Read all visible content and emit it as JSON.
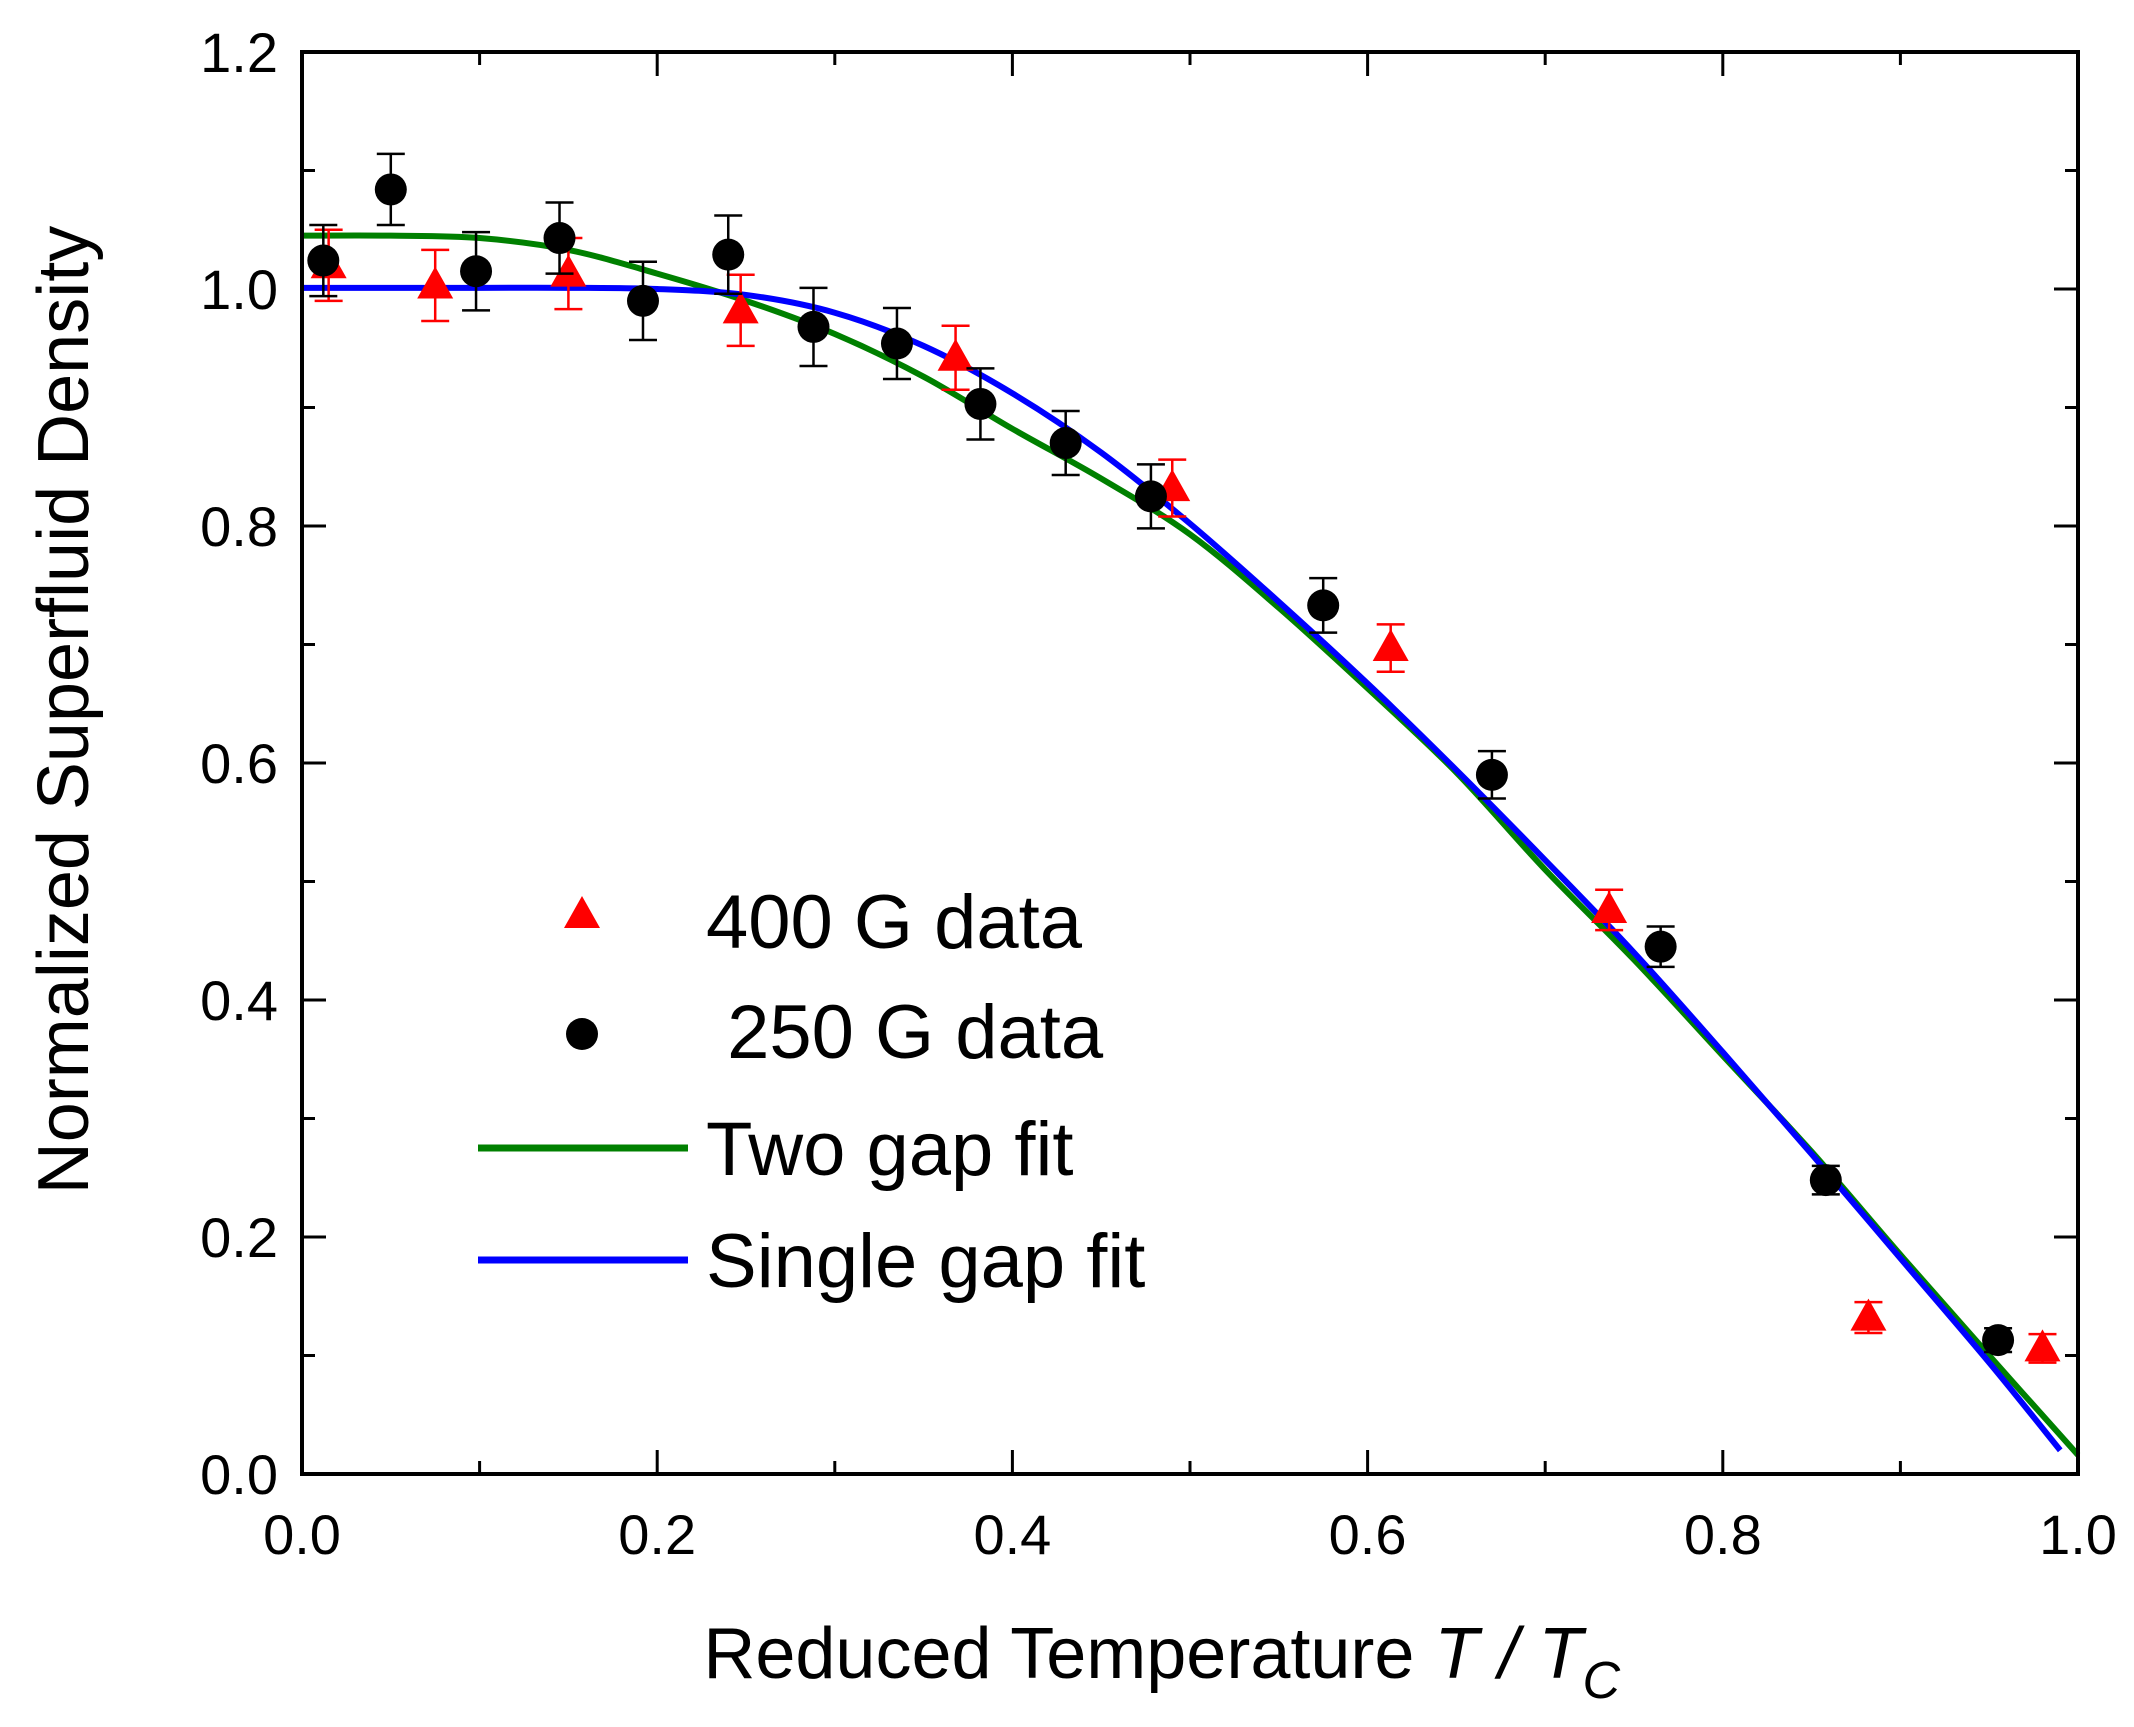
{
  "chart_data": {
    "type": "scatter",
    "xlabel": "Reduced Temperature",
    "xlabel_var_num": "T",
    "xlabel_sep": " / ",
    "xlabel_var_den": "T",
    "xlabel_sub": "C",
    "ylabel": "Normalized Superfluid Density",
    "xlim": [
      0.0,
      1.0
    ],
    "ylim": [
      0.0,
      1.2
    ],
    "xticks": [
      "0.0",
      "0.2",
      "0.4",
      "0.6",
      "0.8",
      "1.0"
    ],
    "yticks": [
      "0.0",
      "0.2",
      "0.4",
      "0.6",
      "0.8",
      "1.0",
      "1.2"
    ],
    "legend_position": "center-left",
    "series": [
      {
        "name": "400 G data",
        "kind": "scatter",
        "marker": "triangle",
        "color": "#ff0000",
        "points": [
          {
            "x": 0.015,
            "y": 1.02,
            "err": 0.03
          },
          {
            "x": 0.075,
            "y": 1.003,
            "err": 0.03
          },
          {
            "x": 0.15,
            "y": 1.013,
            "err": 0.03
          },
          {
            "x": 0.247,
            "y": 0.982,
            "err": 0.03
          },
          {
            "x": 0.368,
            "y": 0.942,
            "err": 0.027
          },
          {
            "x": 0.49,
            "y": 0.832,
            "err": 0.024
          },
          {
            "x": 0.613,
            "y": 0.697,
            "err": 0.02
          },
          {
            "x": 0.736,
            "y": 0.476,
            "err": 0.017
          },
          {
            "x": 0.882,
            "y": 0.132,
            "err": 0.013
          },
          {
            "x": 0.98,
            "y": 0.106,
            "err": 0.012
          }
        ]
      },
      {
        "name": " 250 G data",
        "kind": "scatter",
        "marker": "circle",
        "color": "#000000",
        "points": [
          {
            "x": 0.012,
            "y": 1.024,
            "err": 0.03
          },
          {
            "x": 0.05,
            "y": 1.084,
            "err": 0.03
          },
          {
            "x": 0.098,
            "y": 1.015,
            "err": 0.033
          },
          {
            "x": 0.145,
            "y": 1.043,
            "err": 0.03
          },
          {
            "x": 0.192,
            "y": 0.99,
            "err": 0.033
          },
          {
            "x": 0.24,
            "y": 1.029,
            "err": 0.033
          },
          {
            "x": 0.288,
            "y": 0.968,
            "err": 0.033
          },
          {
            "x": 0.335,
            "y": 0.954,
            "err": 0.03
          },
          {
            "x": 0.382,
            "y": 0.903,
            "err": 0.03
          },
          {
            "x": 0.43,
            "y": 0.87,
            "err": 0.027
          },
          {
            "x": 0.478,
            "y": 0.825,
            "err": 0.027
          },
          {
            "x": 0.575,
            "y": 0.733,
            "err": 0.023
          },
          {
            "x": 0.67,
            "y": 0.59,
            "err": 0.02
          },
          {
            "x": 0.765,
            "y": 0.445,
            "err": 0.017
          },
          {
            "x": 0.858,
            "y": 0.248,
            "err": 0.012
          },
          {
            "x": 0.955,
            "y": 0.113,
            "err": 0.01
          }
        ]
      },
      {
        "name": "Two gap fit",
        "kind": "line",
        "color": "#008000",
        "x": [
          0.0,
          0.05,
          0.1,
          0.15,
          0.2,
          0.25,
          0.3,
          0.35,
          0.4,
          0.45,
          0.5,
          0.55,
          0.6,
          0.65,
          0.7,
          0.75,
          0.8,
          0.85,
          0.9,
          0.95,
          1.0
        ],
        "y": [
          1.045,
          1.045,
          1.043,
          1.033,
          1.013,
          0.99,
          0.962,
          0.926,
          0.882,
          0.84,
          0.793,
          0.731,
          0.663,
          0.592,
          0.51,
          0.434,
          0.353,
          0.272,
          0.185,
          0.1,
          0.016
        ]
      },
      {
        "name": "Single gap fit",
        "kind": "line",
        "color": "#0000ff",
        "x": [
          0.0,
          0.05,
          0.1,
          0.15,
          0.2,
          0.25,
          0.3,
          0.35,
          0.4,
          0.45,
          0.5,
          0.55,
          0.6,
          0.65,
          0.7,
          0.75,
          0.8,
          0.85,
          0.9,
          0.95,
          0.99
        ],
        "y": [
          1.001,
          1.001,
          1.001,
          1.001,
          1.0,
          0.995,
          0.98,
          0.952,
          0.912,
          0.862,
          0.802,
          0.736,
          0.667,
          0.594,
          0.518,
          0.44,
          0.356,
          0.27,
          0.182,
          0.094,
          0.02
        ]
      }
    ]
  }
}
